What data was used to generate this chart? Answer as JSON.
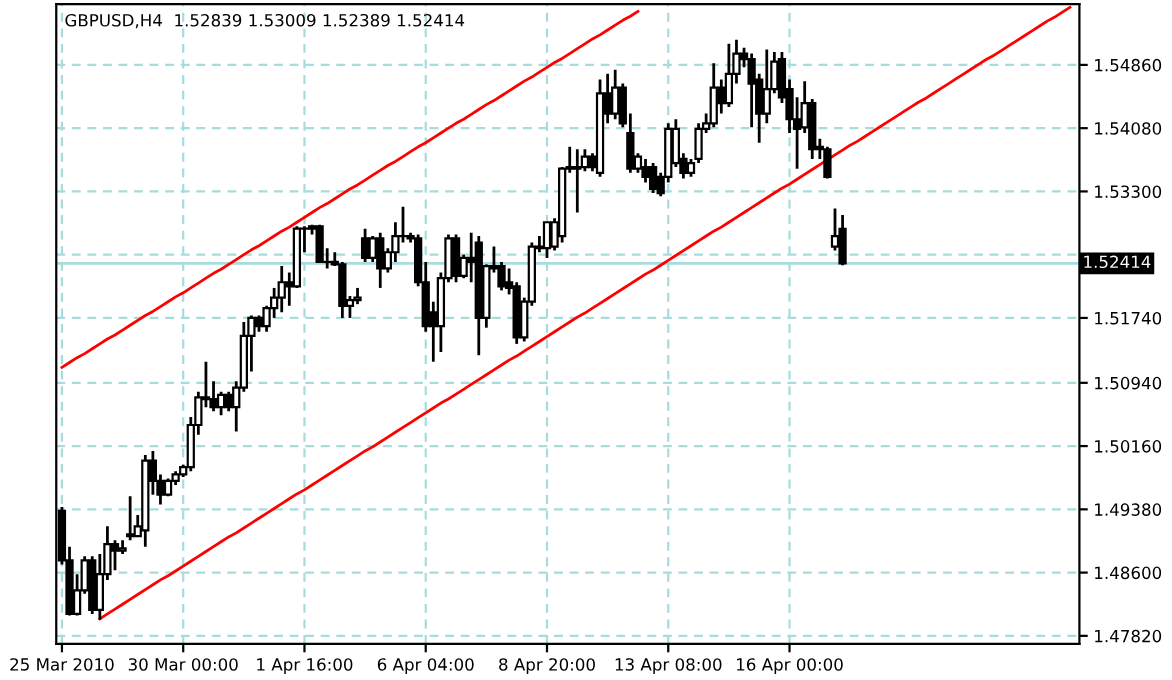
{
  "chart_data": {
    "type": "candlestick",
    "title": "GBPUSD,H4  1.52839 1.53009 1.52389 1.52414",
    "categories": [
      "25 Mar 2010",
      null,
      null,
      null,
      null,
      null,
      null,
      null,
      null,
      null,
      null,
      null,
      null,
      null,
      null,
      null,
      "30 Mar 00:00",
      null,
      null,
      null,
      null,
      null,
      null,
      null,
      null,
      null,
      null,
      null,
      null,
      null,
      null,
      null,
      "1 Apr 16:00",
      null,
      null,
      null,
      null,
      null,
      null,
      null,
      null,
      null,
      null,
      null,
      null,
      null,
      null,
      null,
      "6 Apr 04:00",
      null,
      null,
      null,
      null,
      null,
      null,
      null,
      null,
      null,
      null,
      null,
      null,
      null,
      null,
      null,
      "8 Apr 20:00",
      null,
      null,
      null,
      null,
      null,
      null,
      null,
      null,
      null,
      null,
      null,
      null,
      null,
      null,
      null,
      "13 Apr 08:00",
      null,
      null,
      null,
      null,
      null,
      null,
      null,
      null,
      null,
      null,
      null,
      null,
      null,
      null,
      null,
      "16 Apr 00:00",
      null,
      null,
      null,
      null,
      null,
      null,
      null,
      null,
      null,
      null,
      null,
      null,
      null,
      null,
      null,
      null,
      null,
      null,
      null,
      null,
      null,
      null,
      null,
      null,
      null,
      null,
      null,
      null,
      null,
      null,
      null,
      null,
      null,
      null,
      null,
      null,
      null,
      null
    ],
    "ohlc": [
      [
        1.4936,
        1.4941,
        1.487,
        1.4875
      ],
      [
        1.4875,
        1.4892,
        1.4807,
        1.4809
      ],
      [
        1.4809,
        1.4858,
        1.4807,
        1.4838
      ],
      [
        1.4838,
        1.488,
        1.4834,
        1.4875
      ],
      [
        1.4875,
        1.488,
        1.4809,
        1.4814
      ],
      [
        1.4814,
        1.4883,
        1.4802,
        1.4858
      ],
      [
        1.4858,
        1.4917,
        1.4851,
        1.4895
      ],
      [
        1.4895,
        1.49,
        1.4863,
        1.4887
      ],
      [
        1.4887,
        1.49,
        1.4883,
        1.489
      ],
      [
        1.4907,
        1.4954,
        1.49,
        1.4905
      ],
      [
        1.4905,
        1.4931,
        1.4905,
        1.4917
      ],
      [
        1.4912,
        1.5005,
        1.4892,
        1.4998
      ],
      [
        1.4998,
        1.501,
        1.4956,
        1.4973
      ],
      [
        1.4973,
        1.4981,
        1.4944,
        1.4956
      ],
      [
        1.4956,
        1.4976,
        1.4954,
        1.4973
      ],
      [
        1.4973,
        1.4985,
        1.4968,
        1.4981
      ],
      [
        1.4981,
        1.4993,
        1.4978,
        1.499
      ],
      [
        1.499,
        1.5052,
        1.4985,
        1.5042
      ],
      [
        1.5042,
        1.5083,
        1.503,
        1.5076
      ],
      [
        1.5076,
        1.512,
        1.5064,
        1.5074
      ],
      [
        1.5074,
        1.5096,
        1.5059,
        1.5064
      ],
      [
        1.5064,
        1.5083,
        1.5054,
        1.5079
      ],
      [
        1.5079,
        1.5083,
        1.5059,
        1.5064
      ],
      [
        1.5064,
        1.5096,
        1.5034,
        1.5088
      ],
      [
        1.5088,
        1.5169,
        1.5083,
        1.5152
      ],
      [
        1.5152,
        1.5177,
        1.5108,
        1.5174
      ],
      [
        1.5174,
        1.5177,
        1.5157,
        1.5164
      ],
      [
        1.5164,
        1.5189,
        1.5157,
        1.5186
      ],
      [
        1.5186,
        1.5211,
        1.5174,
        1.5199
      ],
      [
        1.5199,
        1.5238,
        1.5181,
        1.5218
      ],
      [
        1.5218,
        1.523,
        1.5189,
        1.5213
      ],
      [
        1.5213,
        1.5287,
        1.5211,
        1.5284
      ],
      [
        1.5284,
        1.5287,
        1.5255,
        1.5284
      ],
      [
        1.5284,
        1.5289,
        1.5277,
        1.5287
      ],
      [
        1.5287,
        1.5289,
        1.5243,
        1.5243
      ],
      [
        1.5243,
        1.526,
        1.5235,
        1.5243
      ],
      [
        1.5243,
        1.5255,
        1.5238,
        1.524
      ],
      [
        1.524,
        1.5243,
        1.5174,
        1.5189
      ],
      [
        1.5189,
        1.5201,
        1.5174,
        1.5196
      ],
      [
        1.5196,
        1.5211,
        1.5191,
        1.5199
      ],
      [
        1.5272,
        1.5284,
        1.5243,
        1.5248
      ],
      [
        1.5248,
        1.5275,
        1.5243,
        1.5272
      ],
      [
        1.5272,
        1.5279,
        1.5211,
        1.5235
      ],
      [
        1.5235,
        1.526,
        1.523,
        1.5255
      ],
      [
        1.5255,
        1.5292,
        1.5243,
        1.5275
      ],
      [
        1.5275,
        1.5311,
        1.5267,
        1.5275
      ],
      [
        1.5275,
        1.5279,
        1.5267,
        1.5272
      ],
      [
        1.5272,
        1.5277,
        1.5213,
        1.5218
      ],
      [
        1.5218,
        1.5243,
        1.5157,
        1.5164
      ],
      [
        1.5181,
        1.5194,
        1.512,
        1.5164
      ],
      [
        1.5164,
        1.523,
        1.5132,
        1.5223
      ],
      [
        1.5223,
        1.5277,
        1.5218,
        1.5272
      ],
      [
        1.5272,
        1.5277,
        1.5218,
        1.5226
      ],
      [
        1.5226,
        1.5252,
        1.5223,
        1.5248
      ],
      [
        1.5248,
        1.5279,
        1.5218,
        1.5243
      ],
      [
        1.5267,
        1.5275,
        1.5128,
        1.5174
      ],
      [
        1.5174,
        1.524,
        1.5162,
        1.5238
      ],
      [
        1.5235,
        1.5262,
        1.523,
        1.5238
      ],
      [
        1.5238,
        1.5243,
        1.5208,
        1.5213
      ],
      [
        1.5218,
        1.5235,
        1.5203,
        1.5211
      ],
      [
        1.5213,
        1.5218,
        1.5142,
        1.515
      ],
      [
        1.515,
        1.5199,
        1.5145,
        1.5194
      ],
      [
        1.5194,
        1.5267,
        1.5189,
        1.5262
      ],
      [
        1.5262,
        1.5275,
        1.5255,
        1.526
      ],
      [
        1.526,
        1.5292,
        1.5248,
        1.5292
      ],
      [
        1.5262,
        1.5297,
        1.5257,
        1.5292
      ],
      [
        1.5275,
        1.536,
        1.5267,
        1.5358
      ],
      [
        1.5358,
        1.5385,
        1.5353,
        1.536
      ],
      [
        1.536,
        1.5382,
        1.5304,
        1.5358
      ],
      [
        1.536,
        1.5382,
        1.5355,
        1.5373
      ],
      [
        1.5373,
        1.5377,
        1.5355,
        1.536
      ],
      [
        1.5353,
        1.5468,
        1.5348,
        1.5451
      ],
      [
        1.5451,
        1.5475,
        1.5414,
        1.5426
      ],
      [
        1.5426,
        1.548,
        1.5419,
        1.5458
      ],
      [
        1.5458,
        1.5463,
        1.5409,
        1.5414
      ],
      [
        1.5402,
        1.5426,
        1.5353,
        1.5358
      ],
      [
        1.5358,
        1.5377,
        1.5353,
        1.5373
      ],
      [
        1.536,
        1.537,
        1.5341,
        1.5348
      ],
      [
        1.536,
        1.5365,
        1.5328,
        1.5333
      ],
      [
        1.5348,
        1.5353,
        1.5324,
        1.5328
      ],
      [
        1.5348,
        1.5414,
        1.5341,
        1.5407
      ],
      [
        1.5365,
        1.5419,
        1.536,
        1.5407
      ],
      [
        1.537,
        1.5377,
        1.5346,
        1.5353
      ],
      [
        1.5353,
        1.537,
        1.5348,
        1.5365
      ],
      [
        1.537,
        1.5414,
        1.5365,
        1.5407
      ],
      [
        1.5407,
        1.5426,
        1.5402,
        1.5414
      ],
      [
        1.5414,
        1.5488,
        1.5409,
        1.5458
      ],
      [
        1.5458,
        1.5468,
        1.5426,
        1.5439
      ],
      [
        1.5439,
        1.5512,
        1.5434,
        1.5475
      ],
      [
        1.5475,
        1.5517,
        1.5463,
        1.55
      ],
      [
        1.55,
        1.5507,
        1.5483,
        1.5493
      ],
      [
        1.5493,
        1.55,
        1.5409,
        1.5463
      ],
      [
        1.5468,
        1.5475,
        1.539,
        1.5426
      ],
      [
        1.5426,
        1.5505,
        1.5414,
        1.5456
      ],
      [
        1.5456,
        1.5502,
        1.5451,
        1.549
      ],
      [
        1.5493,
        1.5502,
        1.5439,
        1.5446
      ],
      [
        1.5456,
        1.5468,
        1.5402,
        1.5419
      ],
      [
        1.5419,
        1.5446,
        1.5358,
        1.5407
      ],
      [
        1.5409,
        1.5466,
        1.5402,
        1.5439
      ],
      [
        1.5439,
        1.5444,
        1.537,
        1.5382
      ],
      [
        1.5385,
        1.5395,
        1.537,
        1.5382
      ],
      [
        1.5382,
        1.5385,
        1.5346,
        1.5348
      ],
      [
        1.5262,
        1.5309,
        1.5257,
        1.5275
      ],
      [
        1.52839,
        1.53009,
        1.52389,
        1.52414
      ],
      null,
      null,
      null,
      null,
      null,
      null,
      null,
      null,
      null,
      null,
      null,
      null,
      null,
      null,
      null,
      null,
      null,
      null,
      null,
      null,
      null,
      null,
      null,
      null,
      null,
      null,
      null,
      null,
      null,
      null,
      null
    ],
    "color": "#000000",
    "series": [
      {
        "type": "line",
        "color": "#ff0000",
        "values": [
          1.5113,
          1.5119,
          1.5125,
          1.513,
          1.5136,
          1.5142,
          1.5148,
          1.5153,
          1.5159,
          1.5165,
          1.5171,
          1.5177,
          1.5182,
          1.5188,
          1.5194,
          1.52,
          1.5205,
          1.5211,
          1.5217,
          1.5223,
          1.5229,
          1.5234,
          1.524,
          1.5246,
          1.5252,
          1.5258,
          1.5263,
          1.5269,
          1.5275,
          1.5281,
          1.5286,
          1.5292,
          1.5298,
          1.5304,
          1.531,
          1.5315,
          1.5321,
          1.5327,
          1.5333,
          1.5338,
          1.5344,
          1.535,
          1.5356,
          1.5362,
          1.5367,
          1.5373,
          1.5379,
          1.5385,
          1.539,
          1.5396,
          1.5402,
          1.5408,
          1.5414,
          1.5419,
          1.5425,
          1.5431,
          1.5437,
          1.5442,
          1.5448,
          1.5454,
          1.546,
          1.5466,
          1.5471,
          1.5477,
          1.5483,
          1.5489,
          1.5494,
          1.55,
          1.5506,
          1.5512,
          1.5518,
          1.5523,
          1.5529,
          1.5535,
          1.5541,
          1.5546,
          1.5552,
          null,
          null,
          null,
          null,
          null,
          null,
          null,
          null,
          null,
          null,
          null,
          null,
          null,
          null,
          null,
          null,
          null,
          null,
          null,
          null,
          null,
          null,
          null,
          null,
          null,
          null,
          null,
          null,
          null,
          null,
          null,
          null,
          null,
          null,
          null,
          null,
          null,
          null,
          null,
          null,
          null,
          null,
          null,
          null,
          null,
          null,
          null,
          null,
          null,
          null,
          null,
          null,
          null,
          null,
          null,
          null,
          null,
          null
        ]
      },
      {
        "type": "line",
        "color": "#ff0000",
        "values": [
          null,
          null,
          null,
          null,
          null,
          1.4803,
          1.4809,
          1.4815,
          1.4821,
          1.4827,
          1.4833,
          1.4839,
          1.4845,
          1.4851,
          1.4856,
          1.4862,
          1.4868,
          1.4874,
          1.488,
          1.4886,
          1.4892,
          1.4898,
          1.4904,
          1.4909,
          1.4915,
          1.4921,
          1.4927,
          1.4933,
          1.4939,
          1.4945,
          1.4951,
          1.4957,
          1.4962,
          1.4968,
          1.4974,
          1.498,
          1.4986,
          1.4992,
          1.4998,
          1.5004,
          1.501,
          1.5015,
          1.5021,
          1.5027,
          1.5033,
          1.5039,
          1.5045,
          1.5051,
          1.5057,
          1.5063,
          1.5069,
          1.5074,
          1.508,
          1.5086,
          1.5092,
          1.5098,
          1.5104,
          1.511,
          1.5116,
          1.5122,
          1.5127,
          1.5133,
          1.5139,
          1.5145,
          1.5151,
          1.5157,
          1.5163,
          1.5169,
          1.5175,
          1.518,
          1.5186,
          1.5192,
          1.5198,
          1.5204,
          1.521,
          1.5216,
          1.5222,
          1.5228,
          1.5233,
          1.5239,
          1.5245,
          1.5251,
          1.5257,
          1.5263,
          1.5269,
          1.5275,
          1.5281,
          1.5286,
          1.5292,
          1.5298,
          1.5304,
          1.531,
          1.5316,
          1.5322,
          1.5328,
          1.5334,
          1.5339,
          1.5345,
          1.5351,
          1.5357,
          1.5363,
          1.5369,
          1.5375,
          1.5381,
          1.5387,
          1.5392,
          1.5398,
          1.5404,
          1.541,
          1.5416,
          1.5422,
          1.5428,
          1.5434,
          1.544,
          1.5445,
          1.5451,
          1.5457,
          1.5463,
          1.5469,
          1.5475,
          1.5481,
          1.5487,
          1.5493,
          1.5498,
          1.5504,
          1.551,
          1.5516,
          1.5522,
          1.5528,
          1.5534,
          1.554,
          1.5545,
          1.5551,
          1.5557,
          null
        ]
      }
    ],
    "ylim": [
      1.4772,
      1.5561
    ],
    "yticks": [
      {
        "value": 1.4782,
        "label": "1.47820"
      },
      {
        "value": 1.486,
        "label": "1.48600"
      },
      {
        "value": 1.4938,
        "label": "1.49380"
      },
      {
        "value": 1.5016,
        "label": "1.50160"
      },
      {
        "value": 1.5094,
        "label": "1.50940"
      },
      {
        "value": 1.5174,
        "label": "1.51740"
      },
      {
        "value": 1.5252,
        "label": null
      },
      {
        "value": 1.533,
        "label": "1.53300"
      },
      {
        "value": 1.5408,
        "label": "1.54080"
      },
      {
        "value": 1.5486,
        "label": "1.54860"
      }
    ],
    "ref_lines": [
      {
        "axis": "y",
        "value": 1.52414,
        "label": "1.52414",
        "color": "#a8dcdc"
      }
    ],
    "grid": true,
    "line_style": "solid"
  }
}
